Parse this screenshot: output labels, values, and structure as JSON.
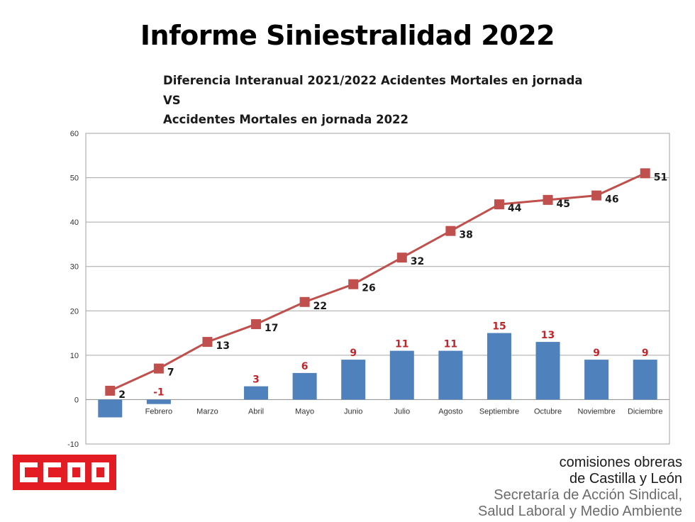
{
  "title": "Informe Siniestralidad 2022",
  "subtitle_lines": [
    "Diferencia Interanual 2021/2022 Acidentes Mortales en jornada",
    "VS",
    "Accidentes Mortales en jornada 2022"
  ],
  "chart_data": {
    "type": "bar+line",
    "categories": [
      "",
      "Febrero",
      "Marzo",
      "Abril",
      "Mayo",
      "Junio",
      "Julio",
      "Agosto",
      "Septiembre",
      "Octubre",
      "Noviembre",
      "Diciembre"
    ],
    "series": [
      {
        "type": "bar",
        "values": [
          -4,
          -1,
          0,
          3,
          6,
          9,
          11,
          11,
          15,
          13,
          9,
          9
        ],
        "labels": [
          "",
          "-1",
          "",
          "3",
          "6",
          "9",
          "11",
          "11",
          "15",
          "13",
          "9",
          "9"
        ],
        "color": "#4f81bd",
        "label_color": "#c0272d"
      },
      {
        "type": "line",
        "values": [
          2,
          7,
          13,
          17,
          22,
          26,
          32,
          38,
          44,
          45,
          46,
          51
        ],
        "labels": [
          "2",
          "7",
          "13",
          "17",
          "22",
          "26",
          "32",
          "38",
          "44",
          "45",
          "46",
          "51"
        ],
        "color": "#c0504d",
        "marker_color": "#c0504d",
        "label_color": "#1a1a1a"
      }
    ],
    "ylim": [
      -10,
      60
    ],
    "yticks": [
      "-10",
      "0",
      "10",
      "20",
      "30",
      "40",
      "50",
      "60"
    ],
    "grid": true,
    "legend": "none"
  },
  "footer": {
    "logo_text": "CCOO",
    "org_line1": "comisiones obreras",
    "org_line2": "de Castilla y León",
    "org_line3": "Secretaría de Acción Sindical,",
    "org_line4": "Salud Laboral y Medio Ambiente",
    "logo_color": "#e31b23"
  }
}
